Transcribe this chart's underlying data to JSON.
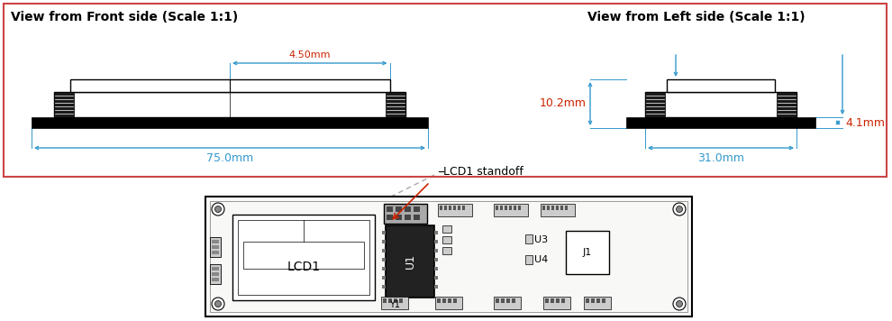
{
  "bg_color": "#ffffff",
  "border_color": "#cc4444",
  "title_front": "View from Front side (Scale 1:1)",
  "title_left": "View from Left side (Scale 1:1)",
  "dim_blue": "#3399cc",
  "dim_red": "#cc2200",
  "annotation_label": "LCD1 standoff",
  "dim_450": "4.50mm",
  "dim_750": "75.0mm",
  "dim_102": "10.2mm",
  "dim_41": "4.1mm",
  "dim_310": "31.0mm"
}
